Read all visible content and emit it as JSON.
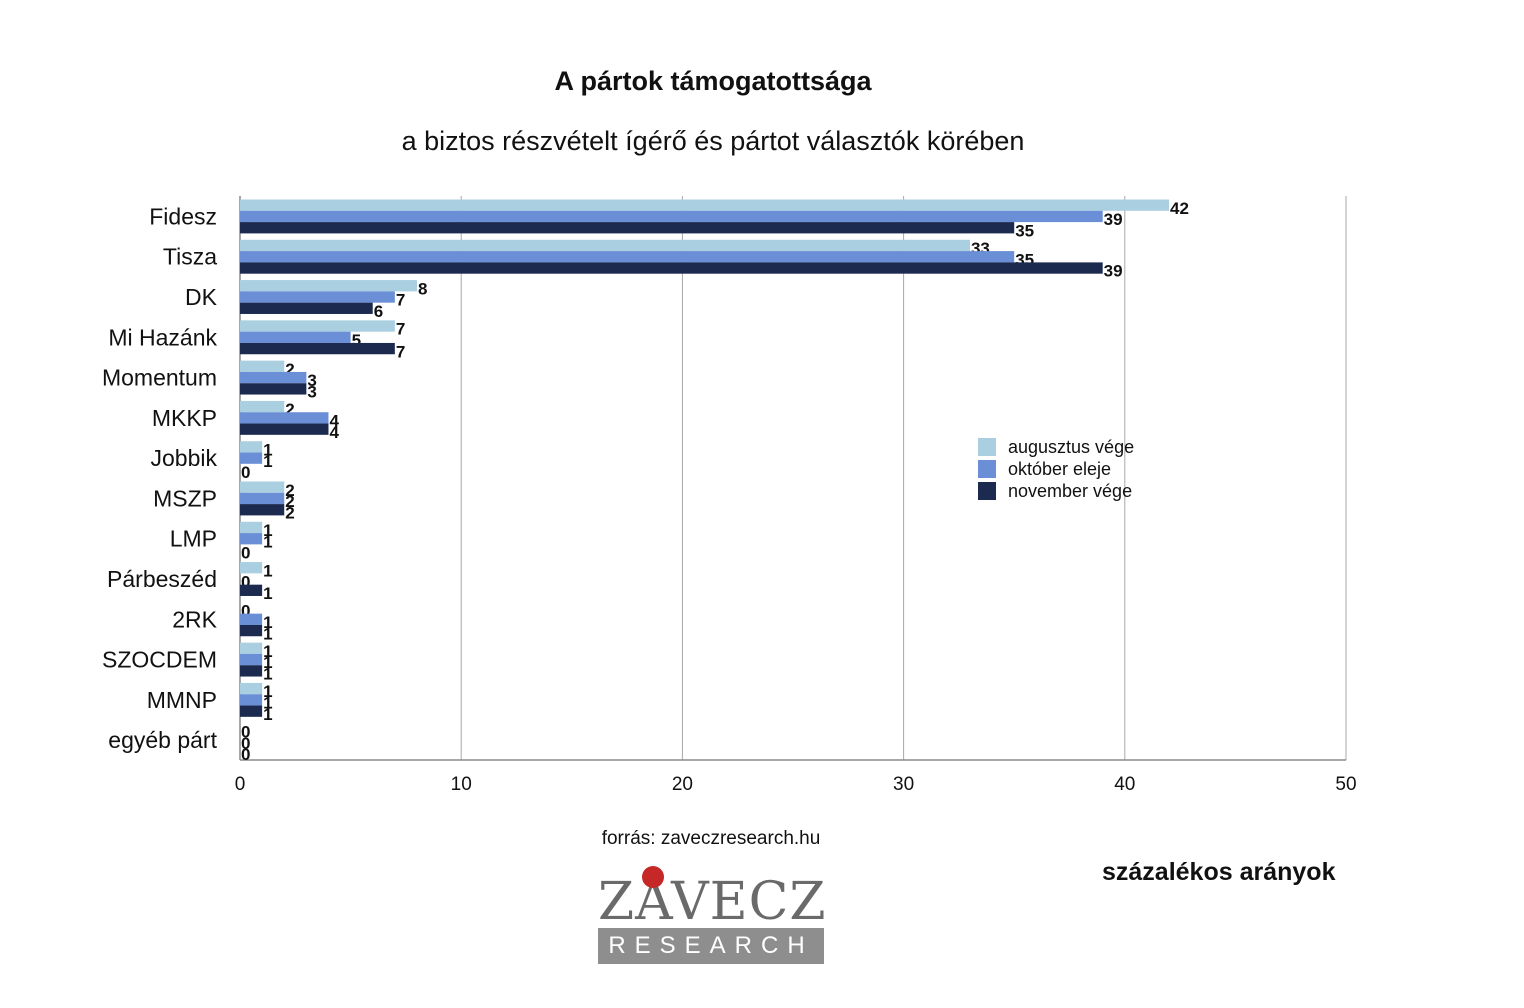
{
  "chart_data": {
    "type": "bar",
    "orientation": "horizontal",
    "title": "A pártok támogatottsága",
    "subtitle": "a biztos részvételt ígérő és pártot választók körében",
    "categories": [
      "Fidesz",
      "Tisza",
      "DK",
      "Mi Hazánk",
      "Momentum",
      "MKKP",
      "Jobbik",
      "MSZP",
      "LMP",
      "Párbeszéd",
      "2RK",
      "SZOCDEM",
      "MMNP",
      "egyéb párt"
    ],
    "series": [
      {
        "name": "augusztus vége",
        "color": "#a9cfe0",
        "values": [
          42,
          33,
          8,
          7,
          2,
          2,
          1,
          2,
          1,
          1,
          0,
          1,
          1,
          0
        ]
      },
      {
        "name": "október eleje",
        "color": "#6b8fd6",
        "values": [
          39,
          35,
          7,
          5,
          3,
          4,
          1,
          2,
          1,
          0,
          1,
          1,
          1,
          0
        ]
      },
      {
        "name": "november vége",
        "color": "#1b2a4e",
        "values": [
          35,
          39,
          6,
          7,
          3,
          4,
          0,
          2,
          0,
          1,
          1,
          1,
          1,
          0
        ]
      }
    ],
    "xlim": [
      0,
      50
    ],
    "xticks": [
      0,
      10,
      20,
      30,
      40,
      50
    ],
    "grid": true,
    "legend": "right",
    "unit_label": "százalékos arányok"
  },
  "source": "forrás: zaveczresearch.hu",
  "logo": {
    "word": "ZÁVECZ",
    "band": "RESEARCH"
  }
}
